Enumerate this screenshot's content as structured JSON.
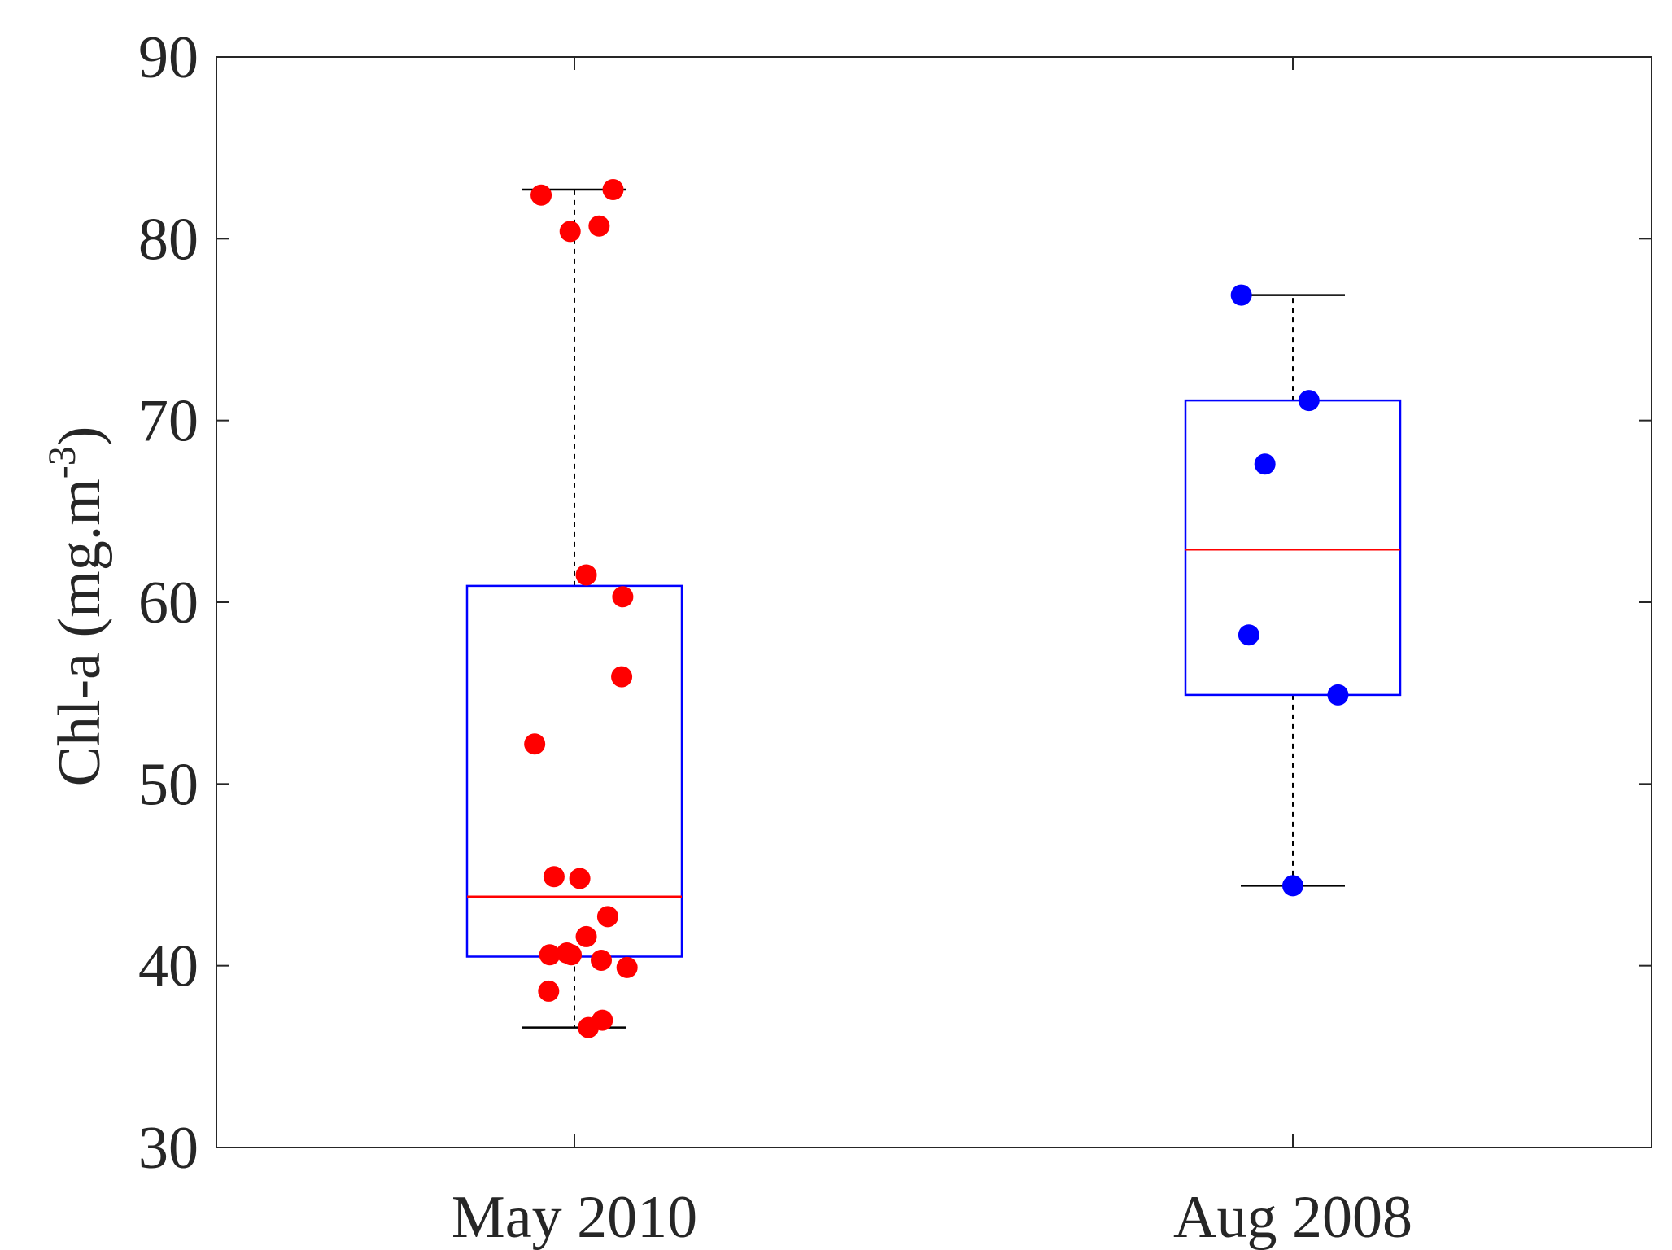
{
  "chart_data": {
    "type": "box",
    "ylabel_main": "Chl-a (mg.m",
    "ylabel_sup": "-3",
    "ylabel_close": ")",
    "xlabel": "",
    "title": "",
    "ylim": [
      30,
      90
    ],
    "yticks": [
      30,
      40,
      50,
      60,
      70,
      80,
      90
    ],
    "ytick_labels": [
      "30",
      "40",
      "50",
      "60",
      "70",
      "80",
      "90"
    ],
    "grid": false,
    "legend": "none",
    "categories": [
      "May 2010",
      "Aug 2008"
    ],
    "groups": [
      {
        "name": "May 2010",
        "color": "#ff0000",
        "box_color": "#0000ff",
        "median_color": "#ff0000",
        "whisker_low": 36.6,
        "q1": 40.5,
        "median": 43.8,
        "q3": 60.9,
        "whisker_high": 82.7,
        "points": [
          {
            "jitter": -0.31,
            "y": 82.4
          },
          {
            "jitter": 0.36,
            "y": 82.7
          },
          {
            "jitter": -0.04,
            "y": 80.4
          },
          {
            "jitter": 0.23,
            "y": 80.7
          },
          {
            "jitter": 0.11,
            "y": 61.5
          },
          {
            "jitter": 0.45,
            "y": 60.3
          },
          {
            "jitter": 0.44,
            "y": 55.9
          },
          {
            "jitter": -0.37,
            "y": 52.2
          },
          {
            "jitter": -0.19,
            "y": 44.9
          },
          {
            "jitter": 0.05,
            "y": 44.8
          },
          {
            "jitter": 0.31,
            "y": 42.7
          },
          {
            "jitter": 0.11,
            "y": 41.6
          },
          {
            "jitter": -0.23,
            "y": 40.6
          },
          {
            "jitter": -0.07,
            "y": 40.7
          },
          {
            "jitter": -0.03,
            "y": 40.6
          },
          {
            "jitter": 0.25,
            "y": 40.3
          },
          {
            "jitter": 0.49,
            "y": 39.9
          },
          {
            "jitter": -0.24,
            "y": 38.6
          },
          {
            "jitter": 0.26,
            "y": 37.0
          },
          {
            "jitter": 0.13,
            "y": 36.6
          }
        ]
      },
      {
        "name": "Aug 2008",
        "color": "#0000ff",
        "box_color": "#0000ff",
        "median_color": "#ff0000",
        "whisker_low": 44.4,
        "q1": 54.9,
        "median": 62.9,
        "q3": 71.1,
        "whisker_high": 76.9,
        "points": [
          {
            "jitter": -0.48,
            "y": 76.9
          },
          {
            "jitter": 0.15,
            "y": 71.1
          },
          {
            "jitter": -0.26,
            "y": 67.6
          },
          {
            "jitter": -0.41,
            "y": 58.2
          },
          {
            "jitter": 0.42,
            "y": 54.9
          },
          {
            "jitter": 0.0,
            "y": 44.4
          }
        ]
      }
    ]
  }
}
